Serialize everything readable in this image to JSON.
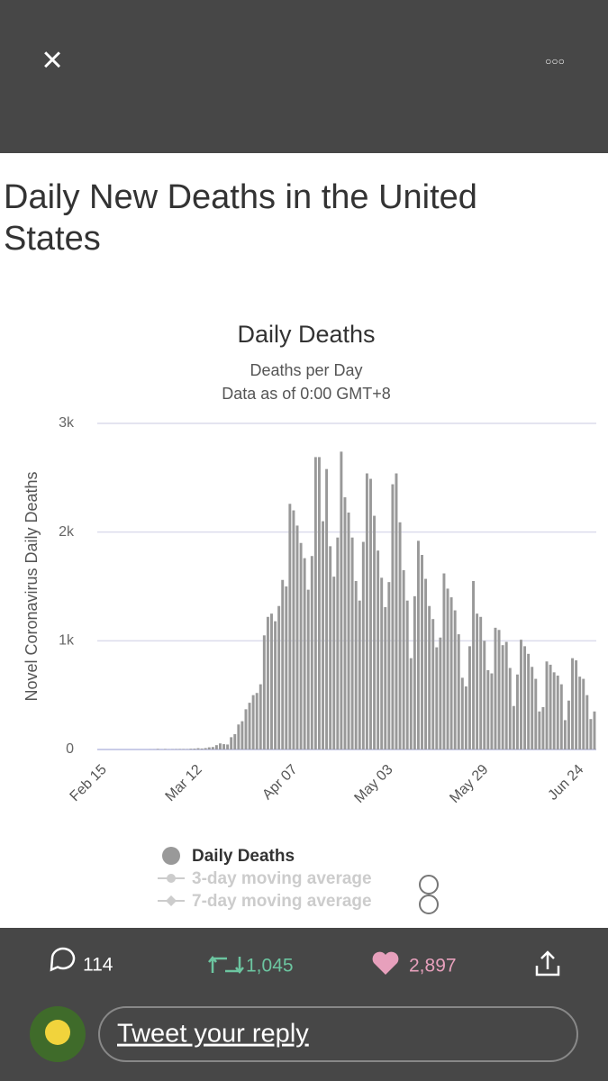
{
  "header": {
    "close_icon": "×",
    "more_icon": "○○○"
  },
  "article": {
    "title": "Daily New Deaths in the United States"
  },
  "chart_data": {
    "type": "bar",
    "title": "Daily Deaths",
    "subtitle": "Deaths per Day",
    "note": "Data as of 0:00 GMT+8",
    "y_label": "Novel Coronavirus Daily Deaths",
    "categories": [
      "Feb 15",
      null,
      null,
      null,
      null,
      null,
      null,
      null,
      null,
      null,
      null,
      null,
      null,
      null,
      null,
      null,
      null,
      null,
      null,
      null,
      null,
      null,
      null,
      null,
      null,
      null,
      "Mar 12",
      null,
      null,
      null,
      null,
      null,
      null,
      null,
      null,
      null,
      null,
      null,
      null,
      null,
      null,
      null,
      null,
      null,
      null,
      null,
      null,
      null,
      null,
      null,
      null,
      null,
      "Apr 07",
      null,
      null,
      null,
      null,
      null,
      null,
      null,
      null,
      null,
      null,
      null,
      null,
      null,
      null,
      null,
      null,
      null,
      null,
      null,
      null,
      null,
      null,
      null,
      null,
      null,
      "May 03",
      null,
      null,
      null,
      null,
      null,
      null,
      null,
      null,
      null,
      null,
      null,
      null,
      null,
      null,
      null,
      null,
      null,
      null,
      null,
      null,
      null,
      null,
      null,
      null,
      null,
      "May 29",
      null,
      null,
      null,
      null,
      null,
      null,
      null,
      null,
      null,
      null,
      null,
      null,
      null,
      null,
      null,
      null,
      null,
      null,
      null,
      null,
      null,
      null,
      null,
      null,
      null,
      "Jun 24",
      null,
      null,
      null,
      null,
      null
    ],
    "series": [
      {
        "name": "Daily Deaths",
        "color": "#999999",
        "values": [
          0,
          0,
          0,
          0,
          0,
          0,
          0,
          0,
          0,
          0,
          0,
          0,
          0,
          0,
          1,
          1,
          5,
          1,
          4,
          1,
          2,
          3,
          4,
          4,
          3,
          7,
          8,
          12,
          9,
          13,
          20,
          23,
          40,
          56,
          49,
          46,
          113,
          141,
          230,
          260,
          370,
          430,
          500,
          520,
          600,
          1050,
          1220,
          1250,
          1180,
          1320,
          1560,
          1500,
          2260,
          2200,
          2060,
          1900,
          1760,
          1470,
          1780,
          2690,
          2690,
          2100,
          2580,
          1870,
          1590,
          1950,
          2740,
          2320,
          2180,
          1950,
          1550,
          1370,
          1910,
          2540,
          2490,
          2150,
          1830,
          1580,
          1310,
          1540,
          2440,
          2540,
          2090,
          1650,
          1370,
          840,
          1410,
          1920,
          1790,
          1570,
          1320,
          1200,
          940,
          1030,
          1620,
          1480,
          1400,
          1280,
          1060,
          660,
          580,
          950,
          1550,
          1250,
          1220,
          1000,
          730,
          700,
          1120,
          1100,
          960,
          990,
          750,
          400,
          690,
          1010,
          950,
          880,
          760,
          650,
          350,
          390,
          810,
          780,
          710,
          680,
          600,
          270,
          450,
          840,
          820,
          670,
          650,
          500,
          280,
          350
        ]
      }
    ],
    "inactive_legend": [
      "3-day moving average",
      "7-day moving average"
    ],
    "ylim": [
      0,
      3000
    ],
    "yticks": [
      0,
      {
        "value": 1000,
        "label": "1k"
      },
      {
        "value": 2000,
        "label": "2k"
      },
      {
        "value": 3000,
        "label": "3k"
      }
    ],
    "grid": true
  },
  "footer": {
    "replies": "114",
    "retweets": "1,045",
    "likes": "2,897",
    "reply_placeholder": "Tweet your reply"
  }
}
